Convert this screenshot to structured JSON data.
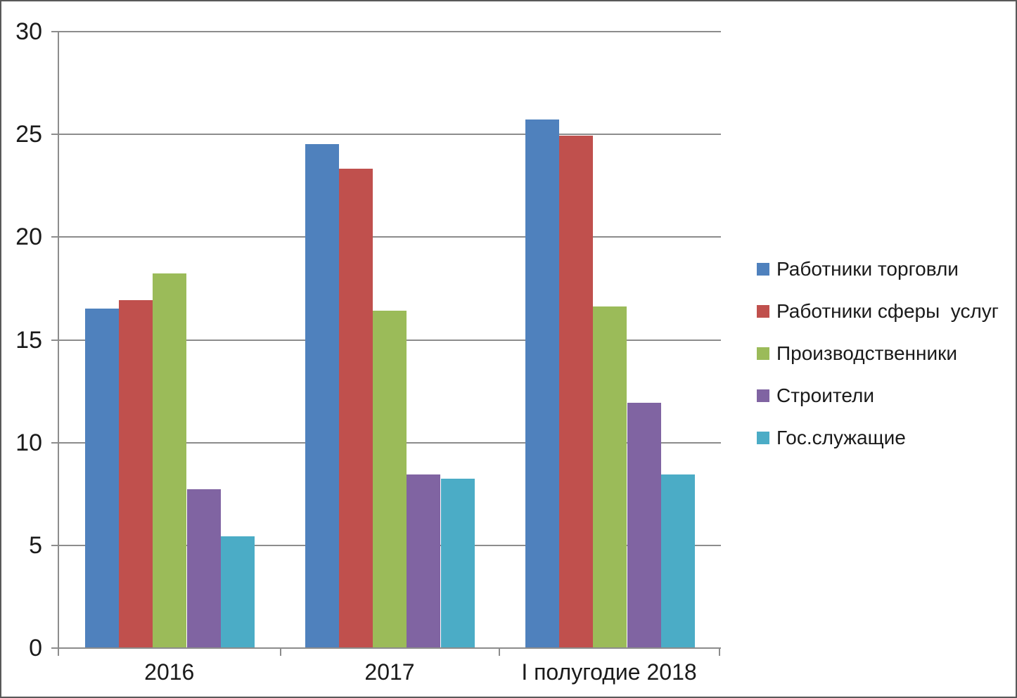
{
  "chart_data": {
    "type": "bar",
    "title": "",
    "xlabel": "",
    "ylabel": "",
    "categories": [
      "2016",
      "2017",
      "I полугодие 2018"
    ],
    "series": [
      {
        "name": "Работники торговли",
        "color": "#4F81BD",
        "values": [
          16.5,
          24.5,
          25.7
        ]
      },
      {
        "name": "Работники сферы  услуг",
        "color": "#C0504D",
        "values": [
          16.9,
          23.3,
          24.9
        ]
      },
      {
        "name": "Производственники",
        "color": "#9BBB59",
        "values": [
          18.2,
          16.4,
          16.6
        ]
      },
      {
        "name": "Строители",
        "color": "#8064A2",
        "values": [
          7.7,
          8.4,
          11.9
        ]
      },
      {
        "name": "Гос.служащие",
        "color": "#4BACC6",
        "values": [
          5.4,
          8.2,
          8.4
        ]
      }
    ],
    "ylim": [
      0,
      30
    ],
    "yticks": [
      0,
      5,
      10,
      15,
      20,
      25,
      30
    ],
    "grid": true,
    "legend_position": "right"
  },
  "colors": {
    "gridline": "#8C8C8C",
    "axis": "#8C8C8C",
    "text": "#1A1A1A",
    "border": "#595959",
    "background": "#FFFFFF"
  }
}
